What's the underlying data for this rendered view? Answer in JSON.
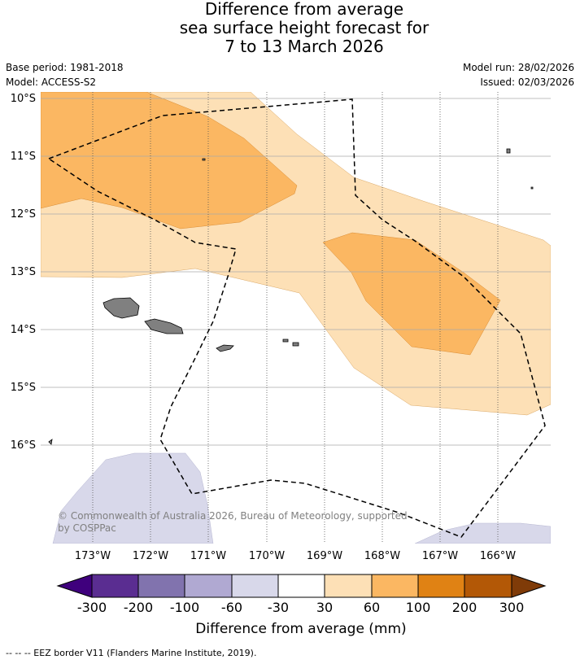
{
  "title": {
    "line1": "Difference from average",
    "line2": "sea surface height forecast for",
    "line3": "7 to 13 March 2026"
  },
  "meta": {
    "base_period": "Base period: 1981-2018",
    "model": "Model: ACCESS-S2",
    "model_run": "Model run: 28/02/2026",
    "issued": "Issued: 02/03/2026"
  },
  "map": {
    "lat_labels": [
      "10°S",
      "11°S",
      "12°S",
      "13°S",
      "14°S",
      "15°S",
      "16°S"
    ],
    "lon_labels": [
      "173°W",
      "172°W",
      "171°W",
      "170°W",
      "169°W",
      "168°W",
      "167°W",
      "166°W"
    ],
    "copyright_line1": "© Commonwealth of Australia 2026, Bureau of Meteorology, supported",
    "copyright_line2": "by COSPPac",
    "colors": {
      "land": "#808080",
      "c_30_60": "#fde0b6",
      "c_60_100": "#fbb762",
      "c_neg30_neg60": "#d8d8ea"
    }
  },
  "colorbar": {
    "ticks": [
      "-300",
      "-200",
      "-100",
      "-60",
      "-30",
      "30",
      "60",
      "100",
      "200",
      "300"
    ],
    "colors": [
      "#3f007d",
      "#5a2d91",
      "#8173ae",
      "#b0a9d2",
      "#d8d8ea",
      "#ffffff",
      "#fde0b6",
      "#fbb762",
      "#e08214",
      "#b35806",
      "#7f3b08"
    ],
    "label": "Difference from average (mm)"
  },
  "footer": {
    "legend": "--  --  -- EEZ border V11 (Flanders Marine Institute, 2019)."
  }
}
